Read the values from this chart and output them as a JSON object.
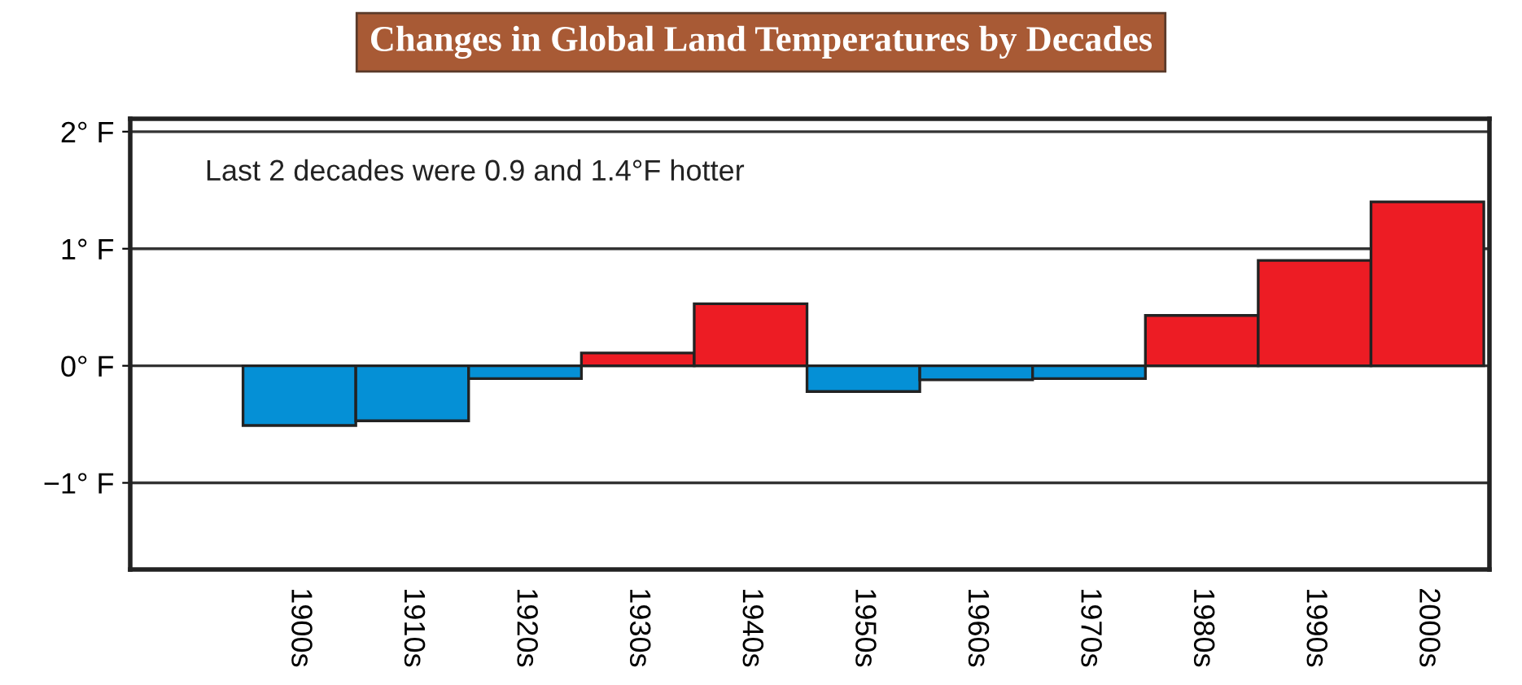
{
  "chart_data": {
    "type": "bar",
    "title": "Changes in Global Land Temperatures by Decades",
    "categories": [
      "1900s",
      "1910s",
      "1920s",
      "1930s",
      "1940s",
      "1950s",
      "1960s",
      "1970s",
      "1980s",
      "1990s",
      "2000s"
    ],
    "values": [
      -0.51,
      -0.47,
      -0.11,
      0.11,
      0.53,
      -0.22,
      -0.12,
      -0.11,
      0.43,
      0.9,
      1.4
    ],
    "colors": [
      "#0590d6",
      "#0590d6",
      "#0590d6",
      "#ed1c24",
      "#ed1c24",
      "#0590d6",
      "#0590d6",
      "#0590d6",
      "#ed1c24",
      "#ed1c24",
      "#ed1c24"
    ],
    "ylim": [
      -1.74,
      2.11
    ],
    "yticks": [
      {
        "value": -1,
        "label": "−1° F"
      },
      {
        "value": 0,
        "label": "0° F"
      },
      {
        "value": 1,
        "label": "1° F"
      },
      {
        "value": 2,
        "label": "2° F"
      }
    ],
    "grid": "y",
    "annotations": [
      "Last 2 decades were 0.9 and 1.4°F hotter"
    ]
  }
}
